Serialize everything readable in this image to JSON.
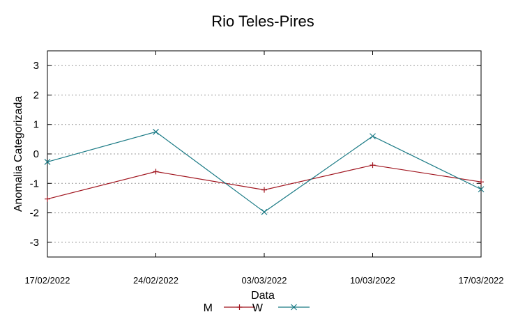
{
  "chart_data": {
    "type": "line",
    "title": "Rio Teles-Pires",
    "xlabel": "Data",
    "ylabel": "Anomalia Categorizada",
    "categories": [
      "17/02/2022",
      "24/02/2022",
      "03/03/2022",
      "10/03/2022",
      "17/03/2022"
    ],
    "ylim": [
      -3.5,
      3.5
    ],
    "yticks": [
      3,
      2,
      1,
      0,
      -1,
      -2,
      -3
    ],
    "ytick_labels": [
      "3",
      "2",
      "1",
      "0",
      "-1",
      "-2",
      "-3"
    ],
    "grid": "horizontal dotted",
    "legend_position": "bottom",
    "series": [
      {
        "name": "M",
        "values": [
          -1.53,
          -0.6,
          -1.22,
          -0.38,
          -0.95
        ],
        "color": "#a0141e",
        "marker": "+"
      },
      {
        "name": "W",
        "values": [
          -0.27,
          0.75,
          -1.97,
          0.6,
          -1.2
        ],
        "color": "#1a7a85",
        "marker": "x"
      }
    ]
  }
}
